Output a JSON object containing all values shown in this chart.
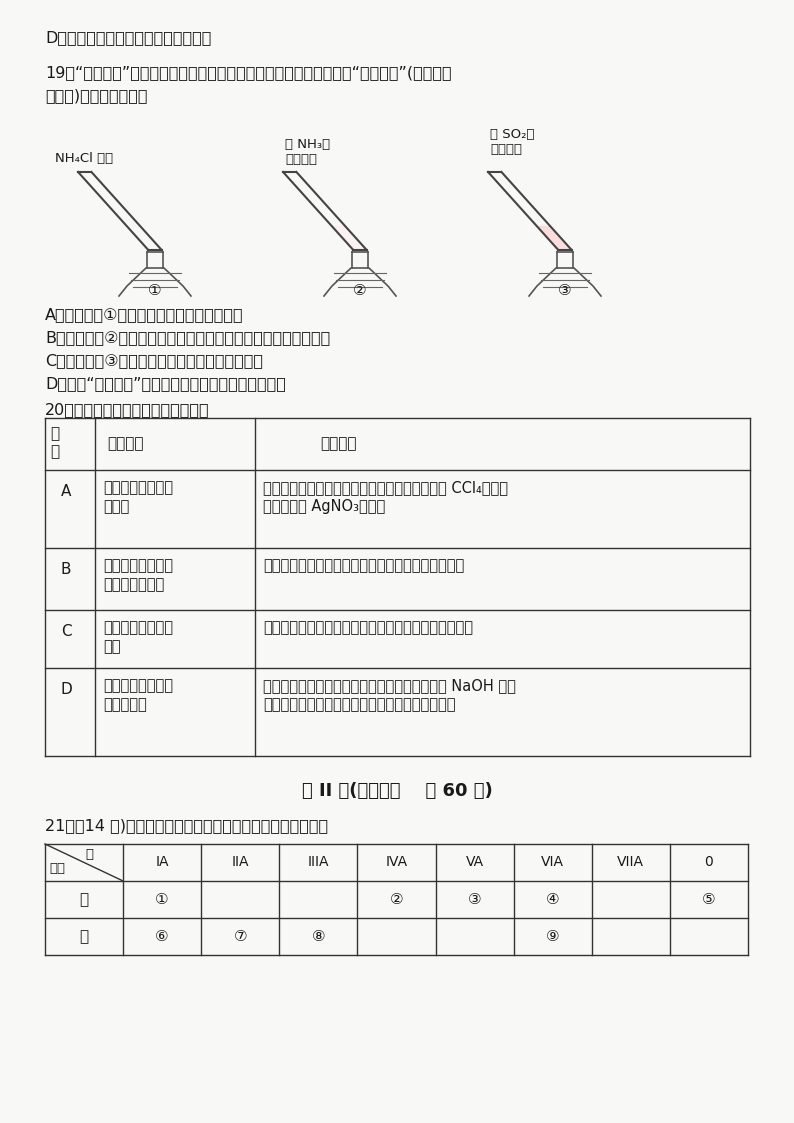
{
  "bg_color": "#f8f8f6",
  "title_D": "D．锶的最高价氧化物的水化物是强酸",
  "q19_text1": "19．“封管实验”具有简易、方便、节约、绻色等优点，下列关于三个“封管实验”(夹持装置",
  "q19_text2": "未画出)的说法错误的是",
  "img_label1": "NH₄Cl 固体",
  "img_label2": "含 NH₃的\n酚酞溶液",
  "img_label3": "含 SO₂的\n品红溶液",
  "num1": "①",
  "num2": "②",
  "num3": "③",
  "optA19": "A．加热时，①中白色固体从下部转移到上部",
  "optB19": "B．加热时，②中溶液从红色变浅至几乎无色，冷却后又恢复红色",
  "optC19": "C．加热时，③中溶液变红，冷却后溶液红色褮去",
  "optD19": "D．三个“封管实验”中所发生的化学反应都是可逆反应",
  "q20_text": "20．下列实验不能达到实验目的的是",
  "section_title": "第 II 卷(非选择题    共 60 分)",
  "q21_text": "21．（14 分)下表是元素周期表的一部分，请回答有关问题：",
  "periodic_headers": [
    "族\n周期",
    "IA",
    "IIA",
    "IIIA",
    "IVA",
    "VA",
    "VIA",
    "VIIA",
    "0"
  ],
  "periodic_row2": [
    "二",
    "①",
    "",
    "",
    "②",
    "③",
    "④",
    "",
    "⑤"
  ],
  "periodic_row3": [
    "三",
    "⑥",
    "⑦",
    "⑧",
    "",
    "",
    "⑨",
    "",
    ""
  ],
  "row_labels": [
    "A",
    "B",
    "C",
    "D"
  ],
  "purposes": [
    "验证苯与溴发生取\n代反应",
    "验证石蜡油分解的\n产物中含有烯烃",
    "探究乙醇催化氧化\n反应",
    "验证蔗糖水解的产\n物有葡萄糖"
  ],
  "steps": [
    "苯与溴水混合后，加入铁粉，将生成气体经过盛 CCl₄的洗气\n瓶后，导入 AgNO₃溶液中",
    "将石蜡油加强热产生的气体通入溴的四氯化碳溶液中",
    "将铜丝在酒精灯外焰炁烧变黑后，趁热伸入无水乙醇中",
    "取蔗糖溶液加入稀硫酸，水浴加热几分钟后，用 NaOH 溶液\n中和至碱性，再加入新制的氢氧化铜悬浊液并加热"
  ]
}
